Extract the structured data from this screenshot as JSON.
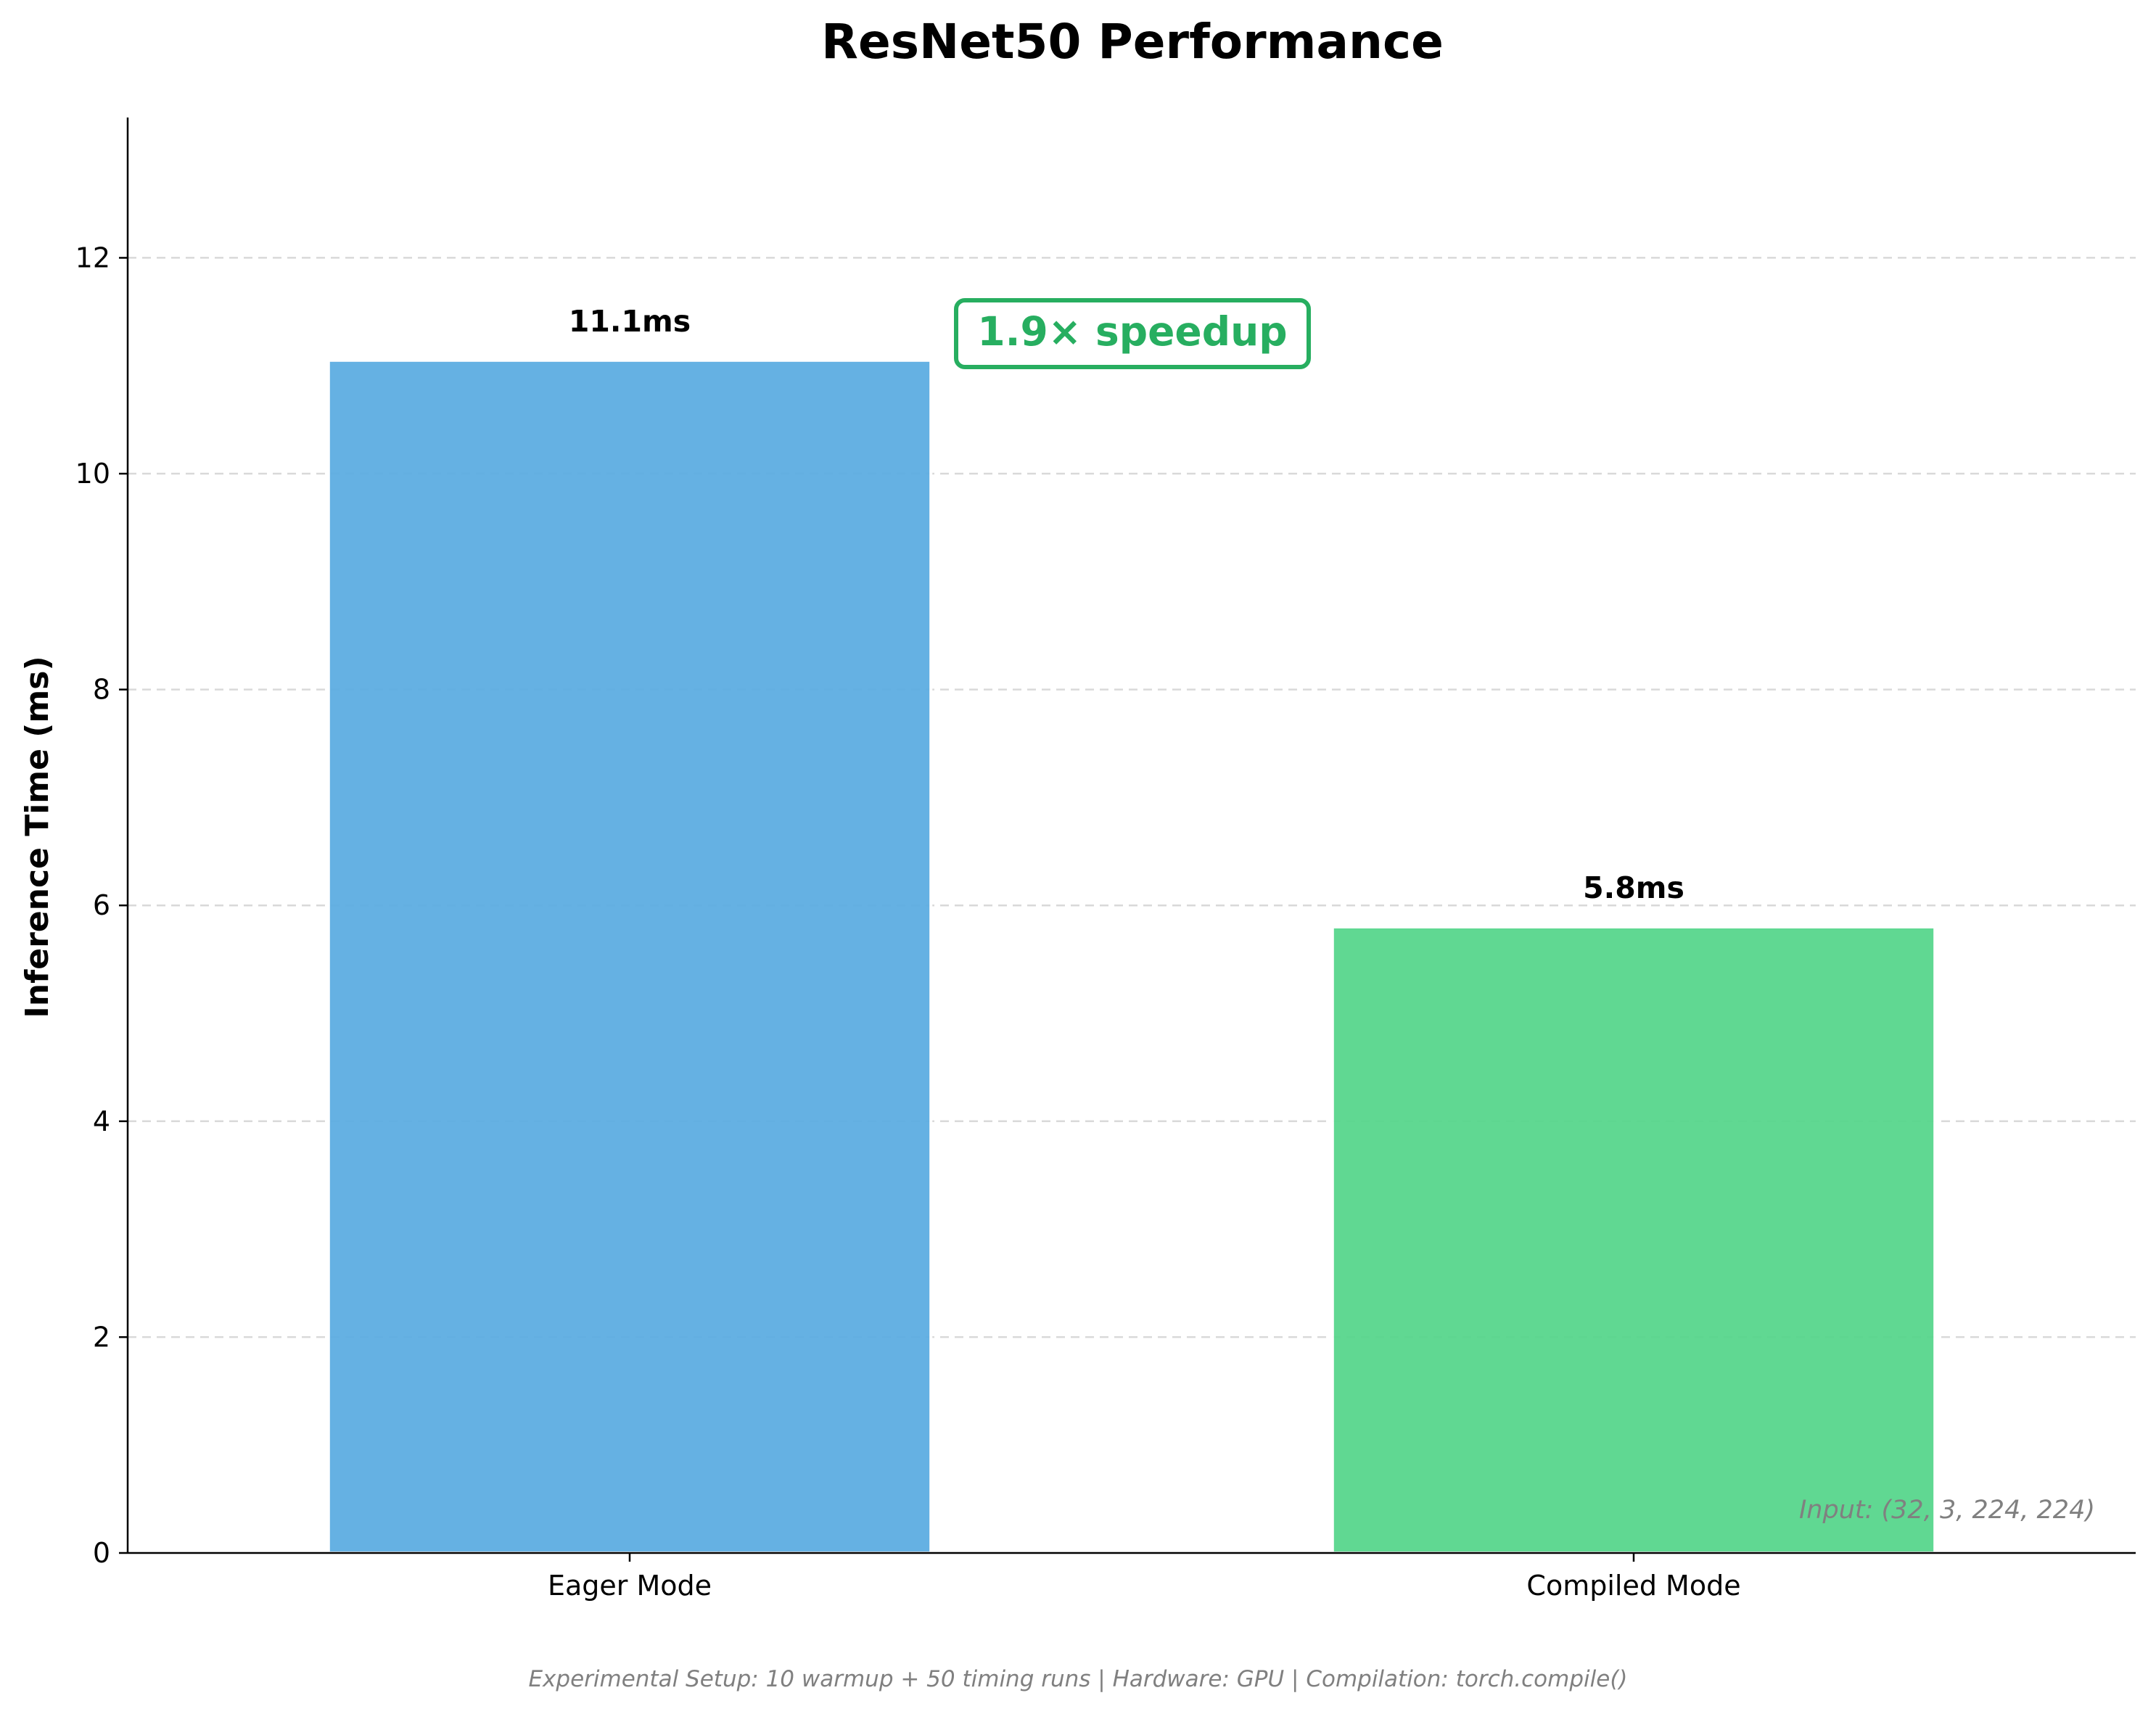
{
  "chart_data": {
    "type": "bar",
    "title": "ResNet50 Performance",
    "xlabel": "",
    "ylabel": "Inference Time (ms)",
    "categories": [
      "Eager Mode",
      "Compiled Mode"
    ],
    "values": [
      11.05,
      5.8
    ],
    "value_labels": [
      "11.1ms",
      "5.8ms"
    ],
    "bar_colors": [
      "#5DADE2",
      "#58D68D"
    ],
    "bar_edge_color": "#ffffff",
    "ylim": [
      0,
      13.3
    ],
    "yticks": [
      0,
      2,
      4,
      6,
      8,
      10,
      12
    ],
    "grid": "y-dashed",
    "annotation": {
      "text": "1.9× speedup",
      "color": "#27AE60"
    },
    "input_note": "Input: (32, 3, 224, 224)",
    "footer": "Experimental Setup: 10 warmup + 50 timing runs | Hardware: GPU | Compilation: torch.compile()"
  }
}
